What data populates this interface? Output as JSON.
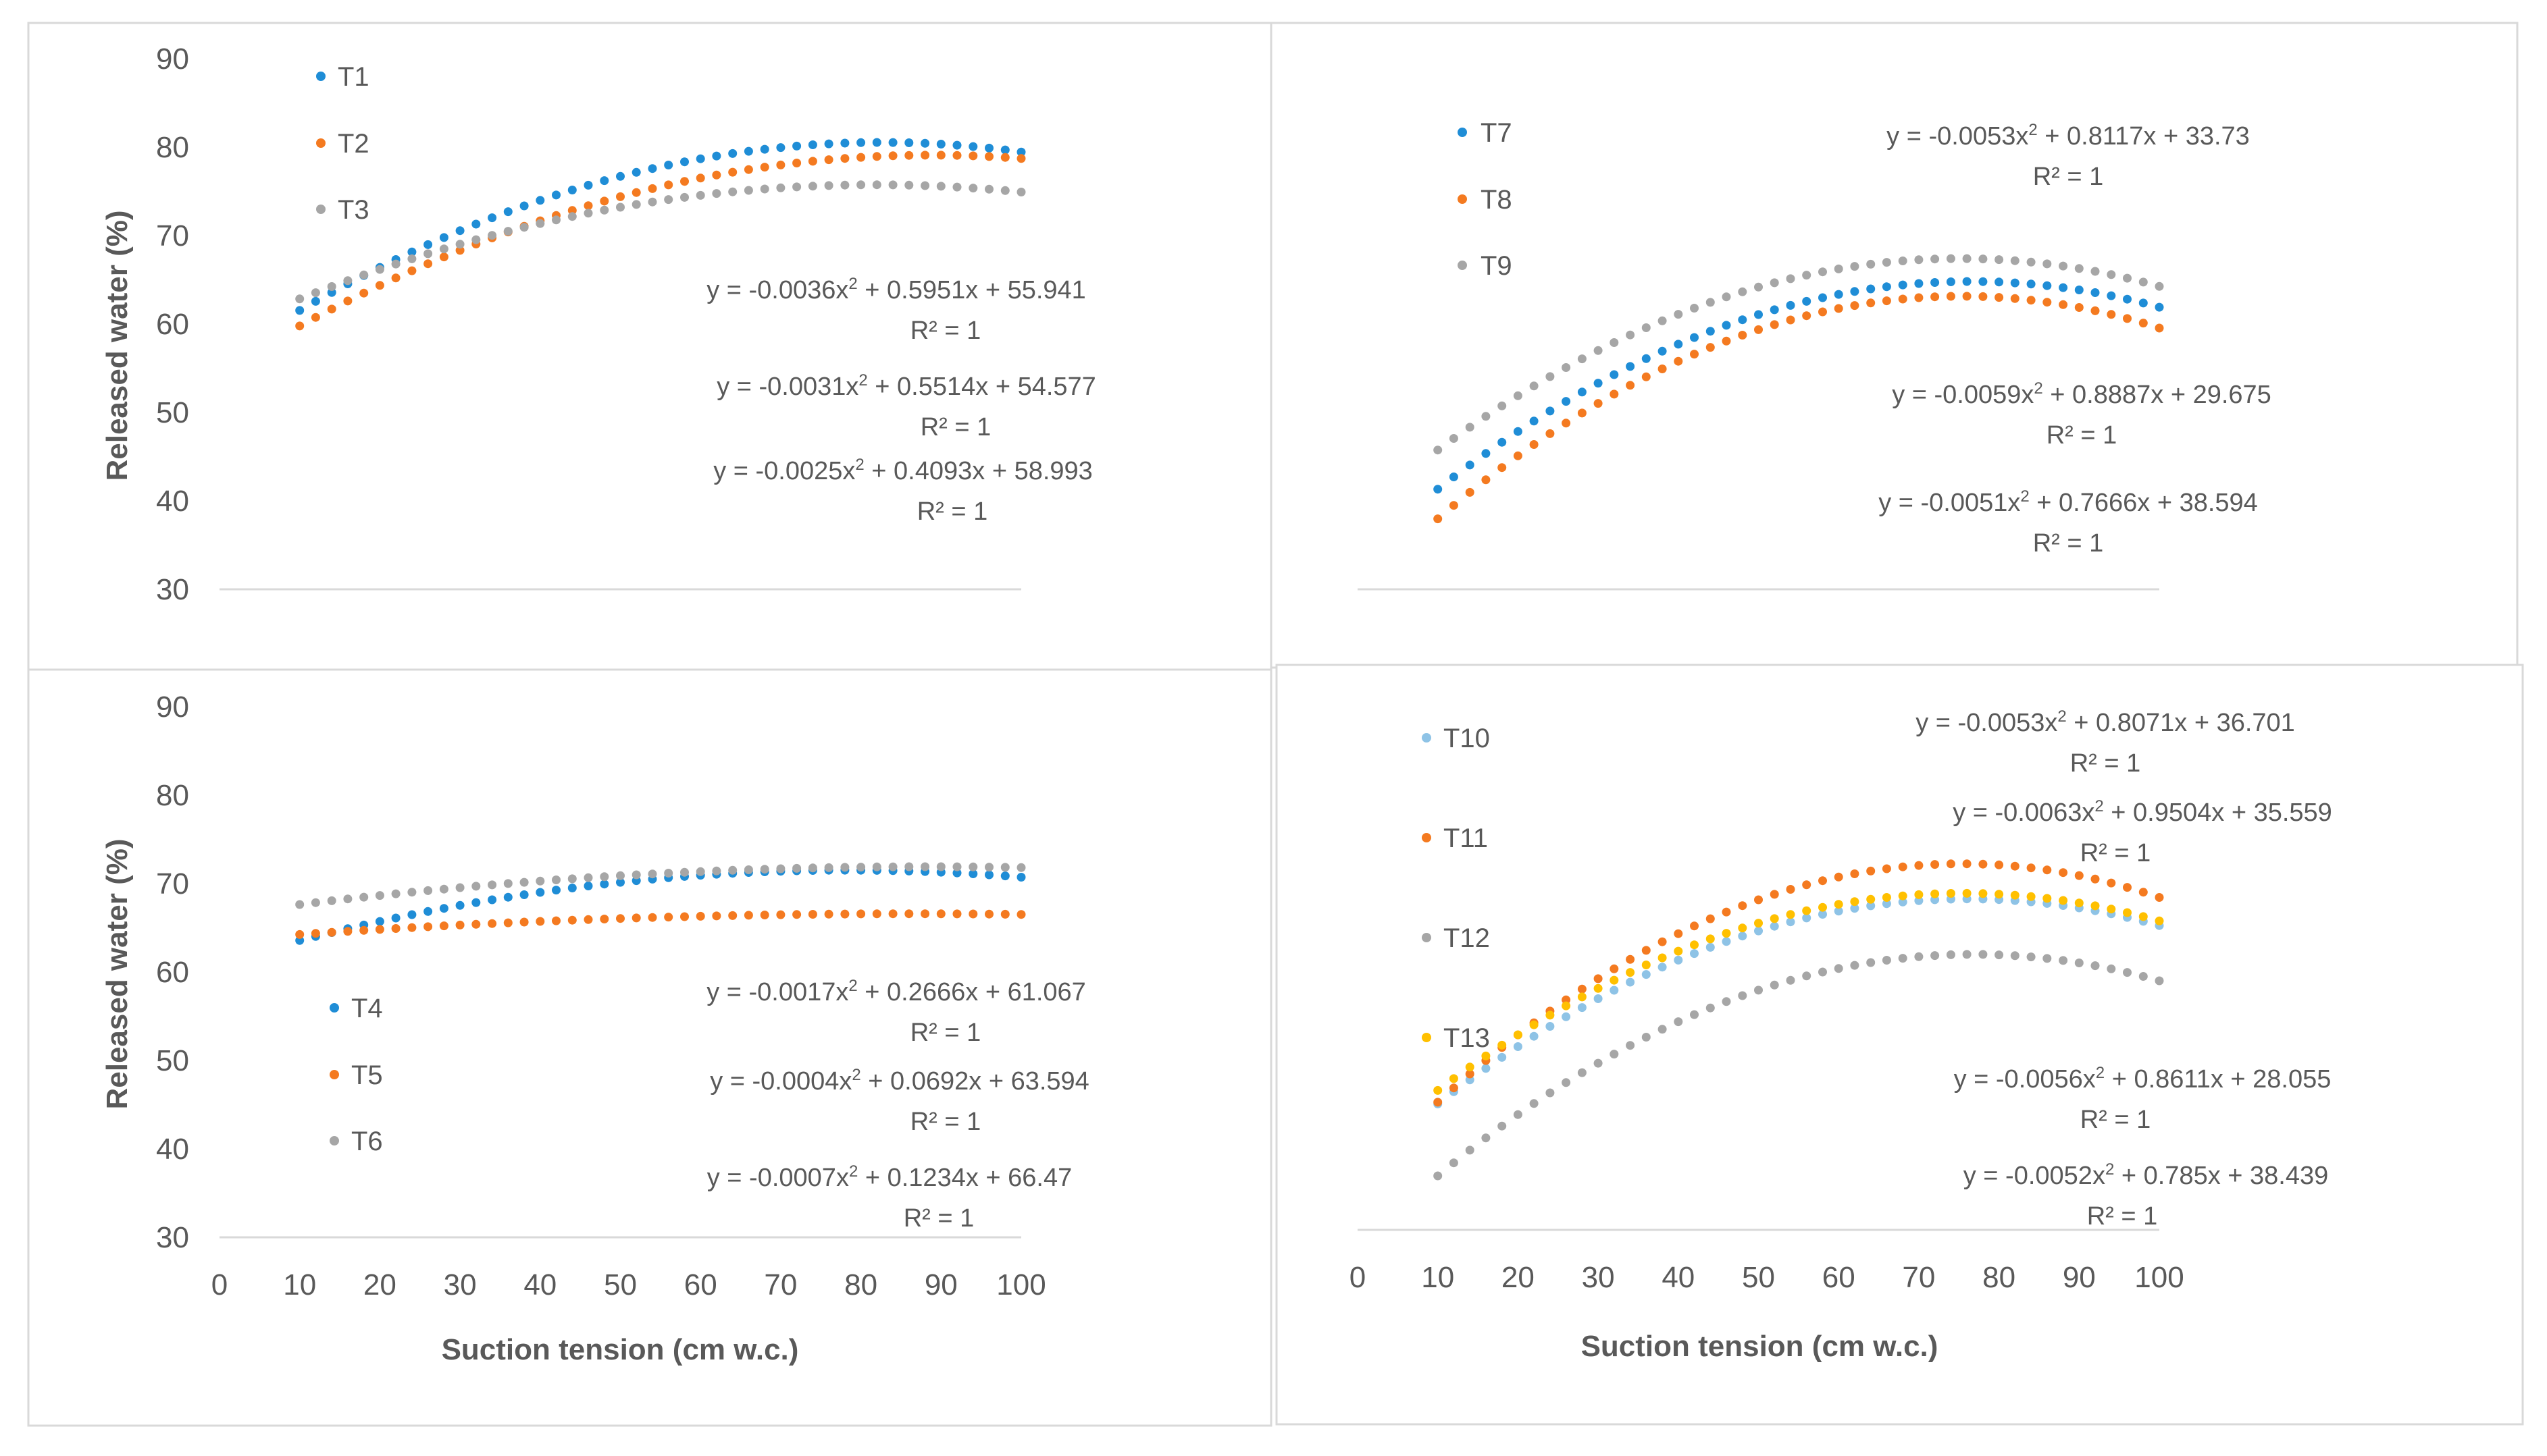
{
  "colors": {
    "blue": "#1f8dd6",
    "orange": "#f47a20",
    "gray": "#a6a6a6",
    "lightblue": "#8ec3e6",
    "yellow": "#ffc000"
  },
  "chart_data": [
    {
      "type": "scatter",
      "id": "A",
      "xlim": [
        0,
        100
      ],
      "ylim": [
        30,
        90
      ],
      "x_range": [
        10,
        100
      ],
      "xticks": [],
      "yticks": [
        "30",
        "40",
        "50",
        "60",
        "70",
        "80",
        "90"
      ],
      "xlabel": "",
      "ylabel": "Released water (%)",
      "series": [
        {
          "name": "T1",
          "color": "blue",
          "a": -0.0036,
          "b": 0.5951,
          "c": 55.941,
          "equation": "y = -0.0036x^2 + 0.5951x + 55.941",
          "eq_main": "y = -0.0036x",
          "eq_sup": "2",
          "eq_rest": " + 0.5951x + 55.941",
          "r2": "R² = 1"
        },
        {
          "name": "T2",
          "color": "orange",
          "a": -0.0031,
          "b": 0.5514,
          "c": 54.577,
          "equation": "y = -0.0031x^2 + 0.5514x + 54.577",
          "eq_main": "y = -0.0031x",
          "eq_sup": "2",
          "eq_rest": " + 0.5514x + 54.577",
          "r2": "R² = 1"
        },
        {
          "name": "T3",
          "color": "gray",
          "a": -0.0025,
          "b": 0.4093,
          "c": 58.993,
          "equation": "y = -0.0025x^2 + 0.4093x + 58.993",
          "eq_main": "y = -0.0025x",
          "eq_sup": "2",
          "eq_rest": " + 0.4093x + 58.993",
          "r2": "R² = 1"
        }
      ]
    },
    {
      "type": "scatter",
      "id": "B",
      "xlim": [
        0,
        100
      ],
      "ylim": [
        30,
        90
      ],
      "x_range": [
        10,
        100
      ],
      "xticks": [],
      "yticks": [],
      "xlabel": "",
      "ylabel": "",
      "series": [
        {
          "name": "T7",
          "color": "blue",
          "a": -0.0053,
          "b": 0.8117,
          "c": 33.73,
          "equation": "y = -0.0053x^2 + 0.8117x + 33.73",
          "eq_main": "y = -0.0053x",
          "eq_sup": "2",
          "eq_rest": " + 0.8117x + 33.73",
          "r2": "R² = 1"
        },
        {
          "name": "T8",
          "color": "orange",
          "a": -0.0059,
          "b": 0.8887,
          "c": 29.675,
          "equation": "y = -0.0059x^2 + 0.8887x + 29.675",
          "eq_main": "y = -0.0059x",
          "eq_sup": "2",
          "eq_rest": " + 0.8887x + 29.675",
          "r2": "R² = 1"
        },
        {
          "name": "T9",
          "color": "gray",
          "a": -0.0051,
          "b": 0.7666,
          "c": 38.594,
          "equation": "y = -0.0051x^2 + 0.7666x + 38.594",
          "eq_main": "y = -0.0051x",
          "eq_sup": "2",
          "eq_rest": " + 0.7666x + 38.594",
          "r2": "R² = 1"
        }
      ]
    },
    {
      "type": "scatter",
      "id": "C",
      "xlim": [
        0,
        100
      ],
      "ylim": [
        30,
        90
      ],
      "x_range": [
        10,
        100
      ],
      "xticks": [
        "0",
        "10",
        "20",
        "30",
        "40",
        "50",
        "60",
        "70",
        "80",
        "90",
        "100"
      ],
      "yticks": [
        "30",
        "40",
        "50",
        "60",
        "70",
        "80",
        "90"
      ],
      "xlabel": "Suction tension (cm w.c.)",
      "ylabel": "Released water (%)",
      "series": [
        {
          "name": "T4",
          "color": "blue",
          "a": -0.0017,
          "b": 0.2666,
          "c": 61.067,
          "equation": "y = -0.0017x^2 + 0.2666x + 61.067",
          "eq_main": "y = -0.0017x",
          "eq_sup": "2",
          "eq_rest": " + 0.2666x + 61.067",
          "r2": "R² = 1"
        },
        {
          "name": "T5",
          "color": "orange",
          "a": -0.0004,
          "b": 0.0692,
          "c": 63.594,
          "equation": "y = -0.0004x^2 + 0.0692x + 63.594",
          "eq_main": "y = -0.0004x",
          "eq_sup": "2",
          "eq_rest": " + 0.0692x + 63.594",
          "r2": "R² = 1"
        },
        {
          "name": "T6",
          "color": "gray",
          "a": -0.0007,
          "b": 0.1234,
          "c": 66.47,
          "equation": "y = -0.0007x^2 + 0.1234x + 66.47",
          "eq_main": "y = -0.0007x",
          "eq_sup": "2",
          "eq_rest": " + 0.1234x + 66.47",
          "r2": "R² = 1"
        }
      ]
    },
    {
      "type": "scatter",
      "id": "D",
      "xlim": [
        0,
        100
      ],
      "ylim": [
        30,
        90
      ],
      "x_range": [
        10,
        100
      ],
      "xticks": [
        "0",
        "10",
        "20",
        "30",
        "40",
        "50",
        "60",
        "70",
        "80",
        "90",
        "100"
      ],
      "yticks": [],
      "xlabel": "Suction tension (cm w.c.)",
      "ylabel": "",
      "series": [
        {
          "name": "T10",
          "color": "lightblue",
          "a": -0.0053,
          "b": 0.8071,
          "c": 36.701,
          "equation": "y = -0.0053x^2 + 0.8071x + 36.701",
          "eq_main": "y = -0.0053x",
          "eq_sup": "2",
          "eq_rest": " + 0.8071x + 36.701",
          "r2": "R² = 1"
        },
        {
          "name": "T11",
          "color": "orange",
          "a": -0.0063,
          "b": 0.9504,
          "c": 35.559,
          "equation": "y = -0.0063x^2 + 0.9504x + 35.559",
          "eq_main": "y = -0.0063x",
          "eq_sup": "2",
          "eq_rest": " + 0.9504x + 35.559",
          "r2": "R² = 1"
        },
        {
          "name": "T12",
          "color": "gray",
          "a": -0.0056,
          "b": 0.8611,
          "c": 28.055,
          "equation": "y = -0.0056x^2 + 0.8611x + 28.055",
          "eq_main": "y = -0.0056x",
          "eq_sup": "2",
          "eq_rest": " + 0.8611x + 28.055",
          "r2": "R² = 1"
        },
        {
          "name": "T13",
          "color": "yellow",
          "a": -0.0052,
          "b": 0.785,
          "c": 38.439,
          "equation": "y = -0.0052x^2 + 0.785x + 38.439",
          "eq_main": "y = -0.0052x",
          "eq_sup": "2",
          "eq_rest": " + 0.785x + 38.439",
          "r2": "R² = 1"
        }
      ]
    }
  ]
}
